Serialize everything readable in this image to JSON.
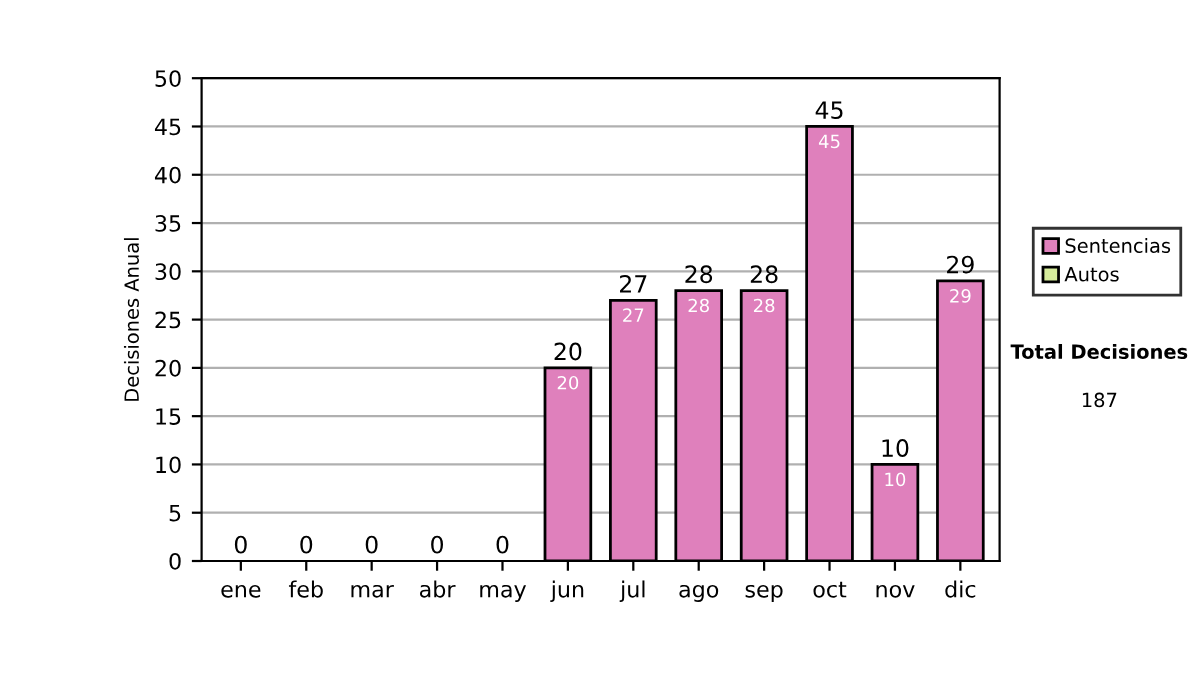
{
  "chart_data": {
    "type": "bar",
    "stacked": true,
    "ylabel": "Decisiones Anual",
    "categories": [
      "ene",
      "feb",
      "mar",
      "abr",
      "may",
      "jun",
      "jul",
      "ago",
      "sep",
      "oct",
      "nov",
      "dic"
    ],
    "series": [
      {
        "name": "Sentencias",
        "color": "#df80bc",
        "values": [
          0,
          0,
          0,
          0,
          0,
          20,
          27,
          28,
          28,
          45,
          10,
          29
        ],
        "value_labels": [
          null,
          null,
          null,
          null,
          null,
          "20",
          "27",
          "28",
          "28",
          "45",
          "10",
          "29"
        ]
      },
      {
        "name": "Autos",
        "color": "#d6ec9c",
        "values": [
          0,
          0,
          0,
          0,
          0,
          0,
          0,
          0,
          0,
          0,
          0,
          0
        ]
      }
    ],
    "totals": [
      "0",
      "0",
      "0",
      "0",
      "0",
      "20",
      "27",
      "28",
      "28",
      "45",
      "10",
      "29"
    ],
    "ylim": [
      0,
      50
    ],
    "yticks": [
      0,
      5,
      10,
      15,
      20,
      25,
      30,
      35,
      40,
      45,
      50
    ],
    "grid": "y",
    "legend": "right",
    "annotations": [
      "Total Decisiones",
      "187"
    ]
  }
}
